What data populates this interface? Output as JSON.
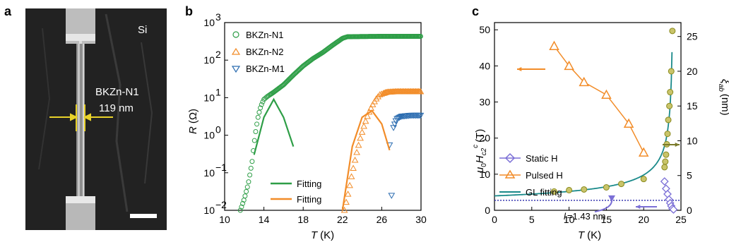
{
  "panel_a": {
    "letter": "a",
    "material_label": "Si",
    "sample_label": "BKZn-N1",
    "width_label": "119 nm"
  },
  "panel_b": {
    "letter": "b",
    "ylabel_var": "R",
    "ylabel_unit": "(Ω)",
    "xlabel_var": "T",
    "xlabel_unit": "(K)",
    "xticks": [
      "10",
      "14",
      "18",
      "22",
      "26",
      "30"
    ],
    "yticks": [
      "10",
      "10",
      "10",
      "10",
      "10",
      "10"
    ],
    "ytick_exp": [
      "−2",
      "−1",
      "0",
      "1",
      "2",
      "3"
    ],
    "legend": [
      "BKZn-N1",
      "BKZn-N2",
      "BKZn-M1"
    ],
    "fit_legend": [
      "Fitting",
      "Fitting"
    ],
    "colors": {
      "n1": "#2e9e47",
      "n2": "#f28c28",
      "m1": "#2b6cb0"
    }
  },
  "panel_c": {
    "letter": "c",
    "xlabel_var": "T",
    "xlabel_unit": "(K)",
    "ylabel_left": "μ0Hc2c (T)",
    "ylabel_right": "ξab (nm)",
    "xticks": [
      "0",
      "5",
      "10",
      "15",
      "20",
      "25"
    ],
    "yticks_left": [
      "0",
      "10",
      "20",
      "30",
      "40",
      "50"
    ],
    "yticks_right": [
      "0",
      "5",
      "10",
      "15",
      "20",
      "25"
    ],
    "legend": [
      "Static H",
      "Pulsed H",
      "GL fitting"
    ],
    "annotation": "l",
    "annotation_sub": "i",
    "annotation_rest": "=1.43 nm",
    "colors": {
      "static": "#7b6fd6",
      "pulsed": "#f28c28",
      "gl": "#1a8a8a",
      "circles": "#8a8a1e",
      "arrow_olive": "#7a7a2a"
    }
  },
  "chart_data": [
    {
      "type": "scatter",
      "panel": "b",
      "xlabel": "T (K)",
      "ylabel": "R (Ω)",
      "xlim": [
        10,
        30
      ],
      "ylim": [
        0.01,
        1000
      ],
      "yscale": "log",
      "series": [
        {
          "name": "BKZn-N1",
          "x": [
            11.6,
            12.0,
            12.4,
            12.8,
            13.0,
            13.2,
            13.4,
            13.6,
            13.8,
            14.0,
            14.4,
            15.0,
            16.0,
            17.0,
            18.0,
            19.0,
            20.0,
            21.0,
            22.0,
            22.5,
            24.0,
            26.0,
            28.0,
            30.0
          ],
          "y": [
            0.01,
            0.02,
            0.05,
            0.2,
            0.6,
            1.5,
            3,
            5,
            7,
            9,
            11,
            14,
            22,
            40,
            70,
            110,
            160,
            250,
            380,
            420,
            425,
            430,
            430,
            430
          ]
        },
        {
          "name": "BKZn-N2",
          "x": [
            22.2,
            22.6,
            23.0,
            23.4,
            23.8,
            24.2,
            24.6,
            25.0,
            25.4,
            25.8,
            26.5,
            27.5,
            29.0,
            30.0
          ],
          "y": [
            0.01,
            0.03,
            0.1,
            0.3,
            0.8,
            1.8,
            3.5,
            6,
            9,
            12,
            14,
            14.5,
            14.5,
            14.5
          ]
        },
        {
          "name": "BKZn-M1",
          "x": [
            26.8,
            27.0,
            27.2,
            27.5,
            28.0,
            29.0,
            30.0
          ],
          "y": [
            0.55,
            0.025,
            1.6,
            2.7,
            3.2,
            3.4,
            3.4
          ]
        },
        {
          "name": "Fitting",
          "x": [
            13.0,
            14.0,
            15.0,
            16.0,
            17.0
          ],
          "y": [
            0.3,
            3,
            9,
            3,
            0.5
          ]
        },
        {
          "name": "Fitting",
          "x": [
            22.0,
            23.0,
            24.0,
            25.0,
            26.0,
            26.8
          ],
          "y": [
            0.01,
            0.5,
            3,
            4.5,
            2,
            0.4
          ]
        }
      ]
    },
    {
      "type": "line",
      "panel": "c",
      "xlabel": "T (K)",
      "ylabel": "μ0Hc2c (T)",
      "xlim": [
        0,
        25
      ],
      "ylim": [
        0,
        52
      ],
      "series": [
        {
          "name": "Static H",
          "x": [
            22.7,
            23.0,
            23.3,
            23.6,
            23.8
          ],
          "y": [
            8,
            5,
            3,
            1.5,
            0.5
          ]
        },
        {
          "name": "Pulsed H",
          "x": [
            8,
            10,
            12,
            15,
            18,
            20
          ],
          "y": [
            45.5,
            40,
            35.5,
            32,
            24,
            16
          ]
        },
        {
          "name": "GL fitting",
          "x": [
            0,
            5,
            10,
            15,
            18,
            20,
            22,
            23,
            23.5,
            23.8
          ],
          "y": [
            4,
            4.8,
            5.6,
            6.6,
            8,
            9.5,
            13,
            18,
            30,
            50
          ]
        },
        {
          "name": "ξab",
          "x": [
            8,
            10,
            12,
            15,
            17,
            20,
            23,
            23.2,
            23.4,
            23.6,
            23.8
          ],
          "y": [
            2.7,
            2.9,
            3.0,
            3.3,
            3.8,
            4.5,
            6.5,
            9,
            13,
            20,
            26
          ]
        }
      ]
    }
  ]
}
